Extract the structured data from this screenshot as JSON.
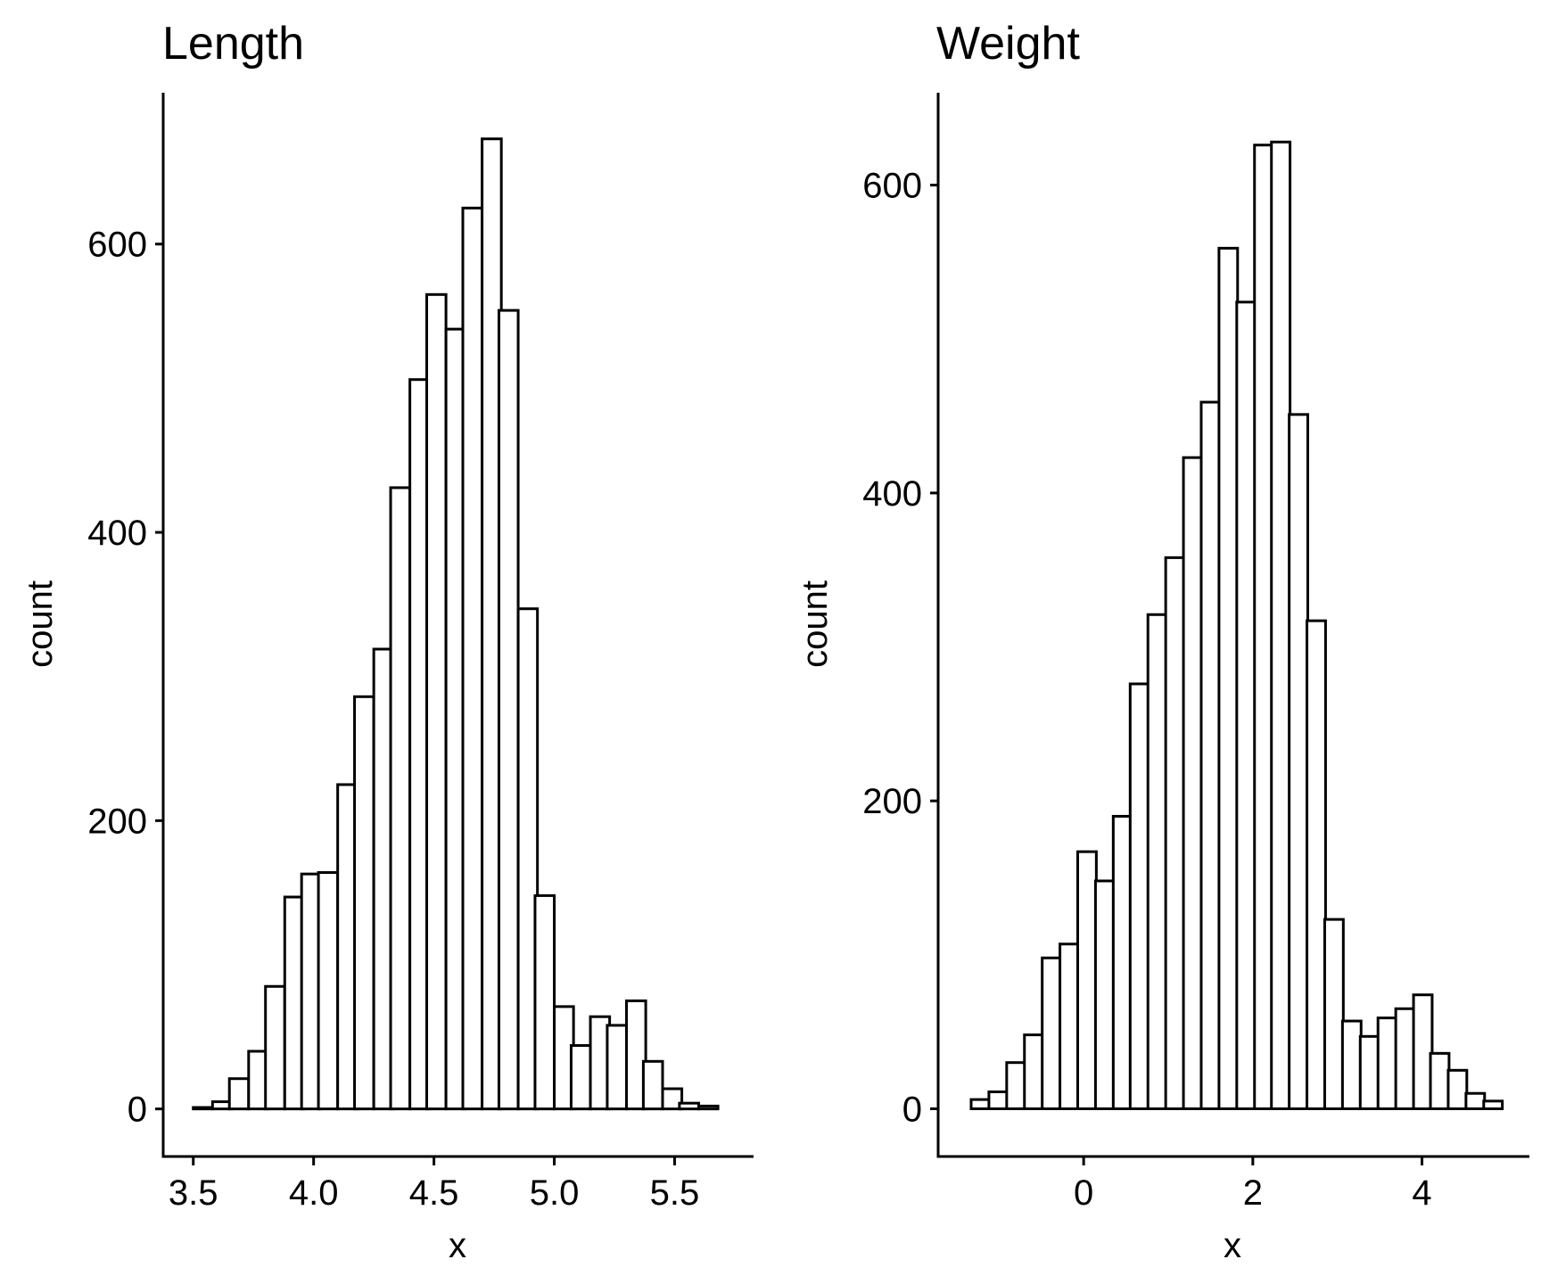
{
  "chart_data": [
    {
      "type": "bar",
      "title": "Length",
      "xlabel": "x",
      "ylabel": "count",
      "bin_width": 0.08,
      "x_ticks": [
        3.5,
        4.0,
        4.5,
        5.0,
        5.5
      ],
      "x_tick_labels": [
        "3.5",
        "4.0",
        "4.5",
        "5.0",
        "5.5"
      ],
      "y_ticks": [
        0,
        200,
        400,
        600
      ],
      "y_tick_labels": [
        "0",
        "200",
        "400",
        "600"
      ],
      "xlim": [
        3.375,
        5.828
      ],
      "ylim": [
        -33,
        705
      ],
      "grid": false,
      "bar_fill": "#ffffff",
      "bar_stroke": "#000000",
      "bins": [
        {
          "x": 3.47,
          "count": 0
        },
        {
          "x": 3.54,
          "count": 1
        },
        {
          "x": 3.62,
          "count": 5
        },
        {
          "x": 3.69,
          "count": 21
        },
        {
          "x": 3.77,
          "count": 40
        },
        {
          "x": 3.84,
          "count": 85
        },
        {
          "x": 3.92,
          "count": 147
        },
        {
          "x": 3.99,
          "count": 163
        },
        {
          "x": 4.06,
          "count": 164
        },
        {
          "x": 4.14,
          "count": 225
        },
        {
          "x": 4.21,
          "count": 286
        },
        {
          "x": 4.29,
          "count": 319
        },
        {
          "x": 4.36,
          "count": 431
        },
        {
          "x": 4.44,
          "count": 506
        },
        {
          "x": 4.51,
          "count": 565
        },
        {
          "x": 4.59,
          "count": 541
        },
        {
          "x": 4.66,
          "count": 625
        },
        {
          "x": 4.74,
          "count": 673
        },
        {
          "x": 4.81,
          "count": 554
        },
        {
          "x": 4.89,
          "count": 347
        },
        {
          "x": 4.96,
          "count": 148
        },
        {
          "x": 5.04,
          "count": 71
        },
        {
          "x": 5.11,
          "count": 44
        },
        {
          "x": 5.19,
          "count": 64
        },
        {
          "x": 5.26,
          "count": 58
        },
        {
          "x": 5.34,
          "count": 75
        },
        {
          "x": 5.41,
          "count": 33
        },
        {
          "x": 5.49,
          "count": 14
        },
        {
          "x": 5.56,
          "count": 4
        },
        {
          "x": 5.64,
          "count": 2
        }
      ]
    },
    {
      "type": "bar",
      "title": "Weight",
      "xlabel": "x",
      "ylabel": "count",
      "bin_width": 0.22,
      "x_ticks": [
        0,
        2,
        4
      ],
      "x_tick_labels": [
        "0",
        "2",
        "4"
      ],
      "y_ticks": [
        0,
        200,
        400,
        600
      ],
      "y_tick_labels": [
        "0",
        "200",
        "400",
        "600"
      ],
      "xlim": [
        -1.72,
        5.27
      ],
      "ylim": [
        -31,
        660
      ],
      "grid": false,
      "bar_fill": "#ffffff",
      "bar_stroke": "#000000",
      "bins": [
        {
          "x": -1.22,
          "count": 6
        },
        {
          "x": -1.01,
          "count": 11
        },
        {
          "x": -0.8,
          "count": 30
        },
        {
          "x": -0.59,
          "count": 48
        },
        {
          "x": -0.38,
          "count": 98
        },
        {
          "x": -0.17,
          "count": 107
        },
        {
          "x": 0.04,
          "count": 167
        },
        {
          "x": 0.25,
          "count": 148
        },
        {
          "x": 0.46,
          "count": 190
        },
        {
          "x": 0.66,
          "count": 276
        },
        {
          "x": 0.87,
          "count": 321
        },
        {
          "x": 1.08,
          "count": 358
        },
        {
          "x": 1.29,
          "count": 423
        },
        {
          "x": 1.5,
          "count": 459
        },
        {
          "x": 1.71,
          "count": 559
        },
        {
          "x": 1.92,
          "count": 524
        },
        {
          "x": 2.13,
          "count": 626
        },
        {
          "x": 2.33,
          "count": 628
        },
        {
          "x": 2.54,
          "count": 451
        },
        {
          "x": 2.75,
          "count": 317
        },
        {
          "x": 2.96,
          "count": 123
        },
        {
          "x": 3.17,
          "count": 57
        },
        {
          "x": 3.38,
          "count": 47
        },
        {
          "x": 3.59,
          "count": 59
        },
        {
          "x": 3.8,
          "count": 65
        },
        {
          "x": 4.01,
          "count": 74
        },
        {
          "x": 4.21,
          "count": 36
        },
        {
          "x": 4.42,
          "count": 25
        },
        {
          "x": 4.63,
          "count": 10
        },
        {
          "x": 4.84,
          "count": 5
        }
      ]
    }
  ]
}
